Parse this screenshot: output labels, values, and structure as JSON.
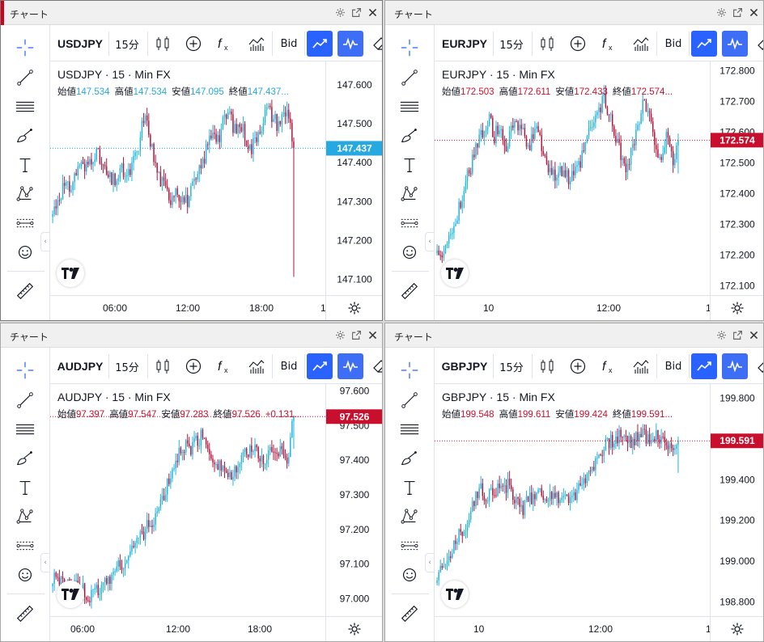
{
  "colors": {
    "up": "#1fb5e0",
    "down": "#b0163e",
    "accent_blue": "#2962ff",
    "label_up": "#26a9e0",
    "label_down": "#c8102e"
  },
  "icons": {
    "titlebar": [
      "gear-icon",
      "popout-icon",
      "close-icon"
    ],
    "tools": [
      "crosshair-icon",
      "trendline-icon",
      "horizontal-lines-icon",
      "brush-icon",
      "text-icon",
      "pattern-icon",
      "forecast-icon",
      "emoji-icon",
      "ruler-icon"
    ],
    "toolbar": [
      "candles-icon",
      "add-indicator-icon",
      "fx-icon",
      "compare-icon",
      "chart-style-icon",
      "replay-icon"
    ]
  },
  "panels": [
    {
      "window_title": "チャート",
      "symbol": "USDJPY",
      "interval": "15分",
      "bid_label": "Bid",
      "legend_title": "USDJPY · 15 · Min FX",
      "ohlc": [
        {
          "label": "始値",
          "value": "147.534"
        },
        {
          "label": "高値",
          "value": "147.534"
        },
        {
          "label": "安値",
          "value": "147.095"
        },
        {
          "label": "終値",
          "value": "147.437..."
        }
      ],
      "last_price": "147.437",
      "direction": "up",
      "price_ticks": [
        "147.600",
        "147.500",
        "147.400",
        "147.300",
        "147.200",
        "147.100"
      ],
      "time_ticks": [
        "06:00",
        "12:00",
        "18:00",
        "1"
      ],
      "chart_data": {
        "type": "candlestick",
        "ylim": [
          147.06,
          147.66
        ],
        "last": 147.437,
        "candles": [
          147.27,
          147.31,
          147.34,
          147.33,
          147.36,
          147.4,
          147.38,
          147.41,
          147.43,
          147.4,
          147.37,
          147.35,
          147.36,
          147.38,
          147.36,
          147.4,
          147.43,
          147.52,
          147.48,
          147.4,
          147.36,
          147.33,
          147.31,
          147.34,
          147.31,
          147.3,
          147.33,
          147.36,
          147.4,
          147.45,
          147.49,
          147.46,
          147.51,
          147.53,
          147.48,
          147.5,
          147.47,
          147.43,
          147.47,
          147.5,
          147.54,
          147.52,
          147.5,
          147.52,
          147.534,
          147.437
        ]
      }
    },
    {
      "window_title": "チャート",
      "symbol": "EURJPY",
      "interval": "15分",
      "bid_label": "Bid",
      "legend_title": "EURJPY · 15 · Min FX",
      "ohlc": [
        {
          "label": "始値",
          "value": "172.503"
        },
        {
          "label": "高値",
          "value": "172.611"
        },
        {
          "label": "安値",
          "value": "172.433"
        },
        {
          "label": "終値",
          "value": "172.574..."
        }
      ],
      "last_price": "172.574",
      "direction": "down",
      "price_ticks": [
        "172.800",
        "172.700",
        "172.600",
        "172.500",
        "172.400",
        "172.300",
        "172.200",
        "172.100"
      ],
      "time_ticks": [
        "10",
        "12:00",
        "1"
      ],
      "chart_data": {
        "type": "candlestick",
        "ylim": [
          172.07,
          172.83
        ],
        "last": 172.574,
        "candles": [
          172.22,
          172.19,
          172.24,
          172.3,
          172.37,
          172.44,
          172.5,
          172.55,
          172.61,
          172.65,
          172.59,
          172.62,
          172.56,
          172.6,
          172.63,
          172.59,
          172.55,
          172.6,
          172.58,
          172.51,
          172.47,
          172.45,
          172.48,
          172.44,
          172.46,
          172.5,
          172.57,
          172.62,
          172.66,
          172.71,
          172.65,
          172.6,
          172.52,
          172.49,
          172.55,
          172.62,
          172.7,
          172.64,
          172.56,
          172.52,
          172.58,
          172.5,
          172.574
        ]
      }
    },
    {
      "window_title": "チャート",
      "symbol": "AUDJPY",
      "interval": "15分",
      "bid_label": "Bid",
      "legend_title": "AUDJPY · 15 · Min FX",
      "ohlc": [
        {
          "label": "始値",
          "value": "97.397"
        },
        {
          "label": "高値",
          "value": "97.547"
        },
        {
          "label": "安値",
          "value": "97.283"
        },
        {
          "label": "終値",
          "value": "97.526"
        },
        {
          "label": "",
          "value": "+0.131..."
        }
      ],
      "last_price": "97.526",
      "direction": "down",
      "price_ticks": [
        "97.600",
        "97.500",
        "97.400",
        "97.300",
        "97.200",
        "97.100",
        "97.000"
      ],
      "time_ticks": [
        "06:00",
        "12:00",
        "18:00",
        "1"
      ],
      "chart_data": {
        "type": "candlestick",
        "ylim": [
          96.95,
          97.62
        ],
        "last": 97.526,
        "candles": [
          97.05,
          97.06,
          97.05,
          97.03,
          97.04,
          97.02,
          97.0,
          97.02,
          97.04,
          97.06,
          97.08,
          97.1,
          97.12,
          97.15,
          97.18,
          97.2,
          97.22,
          97.25,
          97.3,
          97.35,
          97.4,
          97.44,
          97.43,
          97.45,
          97.47,
          97.44,
          97.41,
          97.39,
          97.37,
          97.35,
          97.38,
          97.41,
          97.44,
          97.42,
          97.4,
          97.43,
          97.41,
          97.45,
          97.397,
          97.526
        ]
      }
    },
    {
      "window_title": "チャート",
      "symbol": "GBPJPY",
      "interval": "15分",
      "bid_label": "Bid",
      "legend_title": "GBPJPY · 15 · Min FX",
      "ohlc": [
        {
          "label": "始値",
          "value": "199.548"
        },
        {
          "label": "高値",
          "value": "199.611"
        },
        {
          "label": "安値",
          "value": "199.424"
        },
        {
          "label": "終値",
          "value": "199.591..."
        }
      ],
      "last_price": "199.591",
      "direction": "down",
      "price_ticks": [
        "199.800",
        "199.400",
        "199.200",
        "199.000",
        "198.800"
      ],
      "time_ticks": [
        "10",
        "12:00",
        "1"
      ],
      "chart_data": {
        "type": "candlestick",
        "ylim": [
          198.73,
          199.87
        ],
        "last": 199.591,
        "candles": [
          198.92,
          198.97,
          199.05,
          199.12,
          199.18,
          199.28,
          199.35,
          199.33,
          199.36,
          199.35,
          199.37,
          199.31,
          199.26,
          199.3,
          199.35,
          199.34,
          199.3,
          199.32,
          199.34,
          199.3,
          199.36,
          199.42,
          199.48,
          199.53,
          199.57,
          199.6,
          199.62,
          199.58,
          199.61,
          199.63,
          199.6,
          199.62,
          199.58,
          199.548,
          199.591
        ]
      }
    }
  ]
}
